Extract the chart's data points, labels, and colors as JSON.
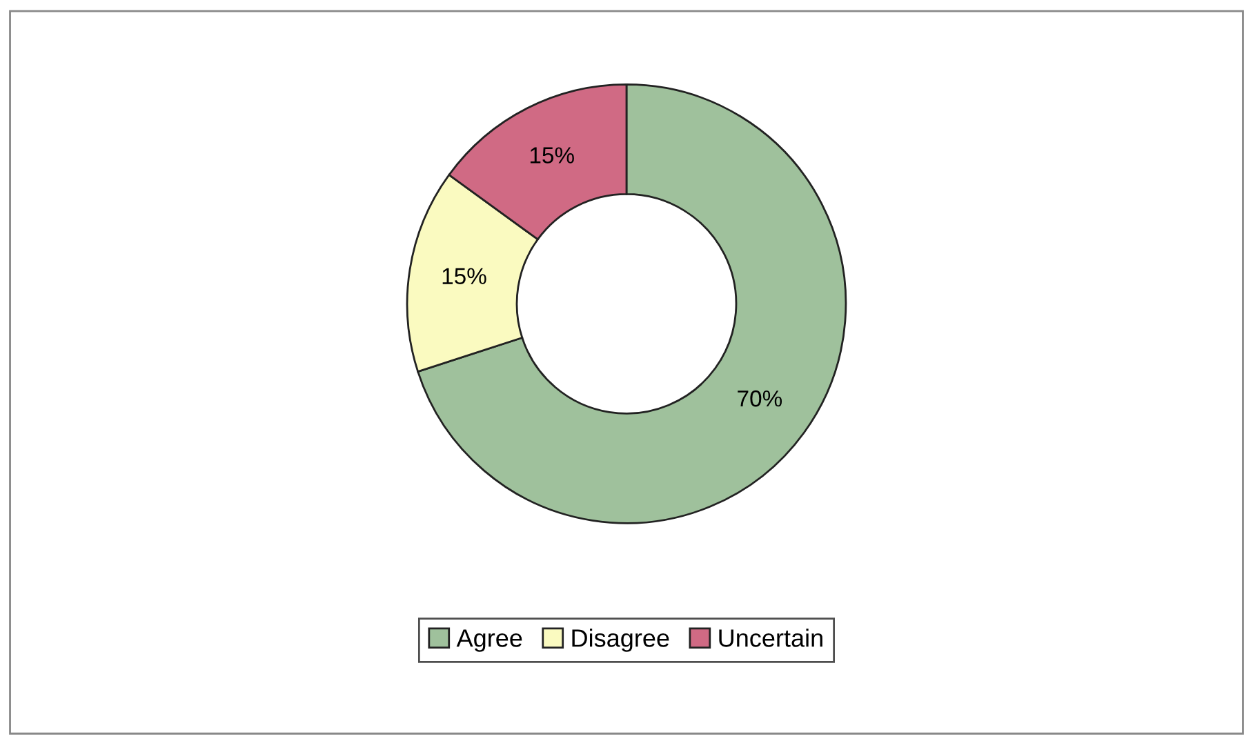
{
  "chart_data": {
    "type": "donut",
    "categories": [
      "Agree",
      "Disagree",
      "Uncertain"
    ],
    "values": [
      70,
      15,
      15
    ],
    "colors": [
      "#9fc19c",
      "#fafac0",
      "#d06a84"
    ],
    "value_labels": [
      "70%",
      "15%",
      "15%"
    ],
    "legend": "bottom"
  }
}
